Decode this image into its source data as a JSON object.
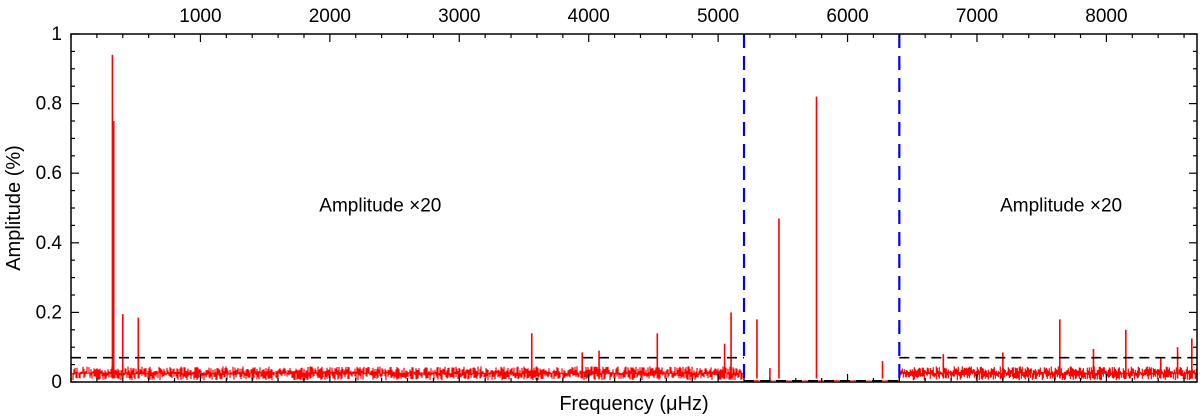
{
  "chart_data": {
    "type": "line",
    "title": "",
    "xlabel_prefix": "Frequency (",
    "xlabel_mu": "μ",
    "xlabel_suffix": "Hz)",
    "ylabel": "Amplitude (%)",
    "xlim": [
      0,
      8700
    ],
    "ylim": [
      0,
      1
    ],
    "x_ticks": [
      1000,
      2000,
      3000,
      4000,
      5000,
      6000,
      7000,
      8000
    ],
    "x_tick_labels": [
      "1000",
      "2000",
      "3000",
      "4000",
      "5000",
      "6000",
      "7000",
      "8000"
    ],
    "x_tick_labels_position": "top",
    "y_ticks": [
      0,
      0.2,
      0.4,
      0.6,
      0.8,
      1
    ],
    "y_tick_labels": [
      "0",
      "0.2",
      "0.4",
      "0.6",
      "0.8",
      "1"
    ],
    "grid": false,
    "series_color": "#ff0000",
    "scaled_region_annotations": [
      {
        "text_main": "Amplitude ",
        "text_times": "×",
        "text_factor": "20",
        "x_center": 2390
      },
      {
        "text_main": "Amplitude ",
        "text_times": "×",
        "text_factor": "20",
        "x_center": 7650
      }
    ],
    "annotation_y": 0.49,
    "unscaled_window": {
      "x_start": 5200,
      "x_end": 6400,
      "color": "#0000ff",
      "style": "dashed"
    },
    "threshold": {
      "y_scaled_region": 0.07,
      "y_unscaled_region": 0.0035,
      "color": "#000000",
      "style": "dashed"
    },
    "noise_scaled_region": {
      "low": 0.005,
      "high": 0.045
    },
    "noise_unscaled_region": {
      "low": 0.003,
      "high": 0.006
    },
    "peaks": [
      {
        "x": 320,
        "y": 0.94
      },
      {
        "x": 330,
        "y": 0.75
      },
      {
        "x": 400,
        "y": 0.195
      },
      {
        "x": 520,
        "y": 0.185
      },
      {
        "x": 3560,
        "y": 0.14
      },
      {
        "x": 3950,
        "y": 0.085
      },
      {
        "x": 4080,
        "y": 0.09
      },
      {
        "x": 4530,
        "y": 0.14
      },
      {
        "x": 5050,
        "y": 0.11
      },
      {
        "x": 5100,
        "y": 0.2
      },
      {
        "x": 5300,
        "y": 0.18
      },
      {
        "x": 5400,
        "y": 0.04
      },
      {
        "x": 5470,
        "y": 0.47
      },
      {
        "x": 5760,
        "y": 0.82
      },
      {
        "x": 6270,
        "y": 0.06
      },
      {
        "x": 6740,
        "y": 0.08
      },
      {
        "x": 7200,
        "y": 0.085
      },
      {
        "x": 7640,
        "y": 0.18
      },
      {
        "x": 7900,
        "y": 0.095
      },
      {
        "x": 8150,
        "y": 0.15
      },
      {
        "x": 8420,
        "y": 0.07
      },
      {
        "x": 8550,
        "y": 0.1
      },
      {
        "x": 8660,
        "y": 0.125
      }
    ]
  }
}
